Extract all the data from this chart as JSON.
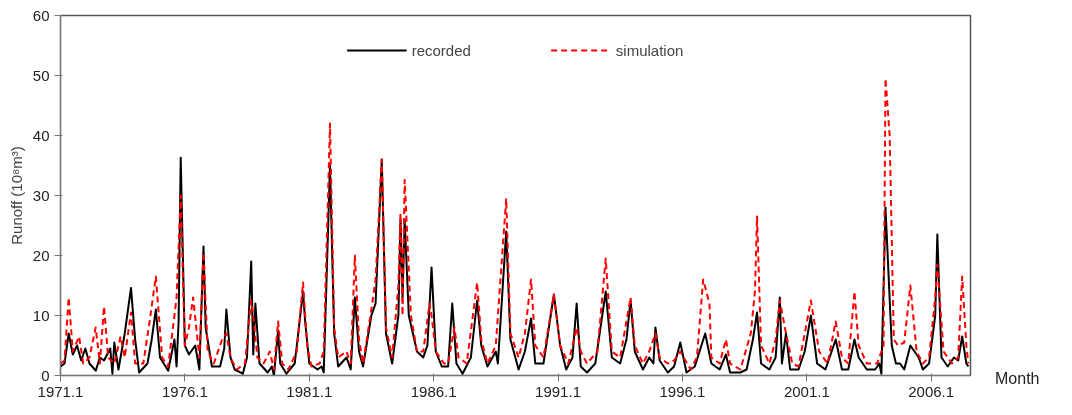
{
  "chart_data": {
    "type": "line",
    "xlabel": "Month",
    "ylabel": "Runoff (10⁸m³)",
    "xlim": [
      "1971-01",
      "2007-08"
    ],
    "ylim": [
      0,
      60
    ],
    "xticks": [
      {
        "value": "1971-01",
        "label": "1971.1"
      },
      {
        "value": "1976-01",
        "label": "1976.1"
      },
      {
        "value": "1981-01",
        "label": "1981.1"
      },
      {
        "value": "1986-01",
        "label": "1986.1"
      },
      {
        "value": "1991-01",
        "label": "1991.1"
      },
      {
        "value": "1996-01",
        "label": "1996.1"
      },
      {
        "value": "2001-01",
        "label": "2001.1"
      },
      {
        "value": "2006-01",
        "label": "2006.1"
      }
    ],
    "yticks": [
      0,
      10,
      20,
      30,
      40,
      50,
      60
    ],
    "grid": false,
    "legend": "top",
    "marker": "none",
    "series": [
      {
        "name": "recorded",
        "color": "#000000",
        "line_style": "solid",
        "x": [
          "1971-01",
          "1971-03",
          "1971-05",
          "1971-07",
          "1971-09",
          "1971-11",
          "1972-01",
          "1972-03",
          "1972-06",
          "1972-08",
          "1972-10",
          "1973-01",
          "1973-02",
          "1973-03",
          "1973-05",
          "1973-08",
          "1973-11",
          "1974-01",
          "1974-03",
          "1974-07",
          "1974-09",
          "1974-11",
          "1975-01",
          "1975-05",
          "1975-08",
          "1975-09",
          "1975-10",
          "1975-11",
          "1976-01",
          "1976-03",
          "1976-06",
          "1976-08",
          "1976-10",
          "1976-11",
          "1977-02",
          "1977-06",
          "1977-08",
          "1977-09",
          "1977-11",
          "1978-01",
          "1978-05",
          "1978-07",
          "1978-09",
          "1978-10",
          "1978-11",
          "1979-01",
          "1979-05",
          "1979-07",
          "1979-08",
          "1979-10",
          "1979-11",
          "1980-02",
          "1980-06",
          "1980-10",
          "1980-11",
          "1981-01",
          "1981-05",
          "1981-07",
          "1981-08",
          "1981-11",
          "1982-01",
          "1982-03",
          "1982-07",
          "1982-09",
          "1982-11",
          "1983-01",
          "1983-03",
          "1983-07",
          "1983-09",
          "1983-12",
          "1984-02",
          "1984-05",
          "1984-08",
          "1984-09",
          "1984-10",
          "1984-11",
          "1985-01",
          "1985-05",
          "1985-08",
          "1985-10",
          "1985-12",
          "1986-02",
          "1986-05",
          "1986-08",
          "1986-10",
          "1986-12",
          "1987-03",
          "1987-07",
          "1987-10",
          "1987-12",
          "1988-03",
          "1988-07",
          "1988-08",
          "1988-12",
          "1989-02",
          "1989-06",
          "1989-09",
          "1989-12",
          "1990-02",
          "1990-06",
          "1990-11",
          "1991-02",
          "1991-05",
          "1991-08",
          "1991-10",
          "1991-12",
          "1992-03",
          "1992-07",
          "1992-12",
          "1993-03",
          "1993-07",
          "1993-10",
          "1993-12",
          "1994-02",
          "1994-06",
          "1994-09",
          "1994-11",
          "1994-12",
          "1995-02",
          "1995-06",
          "1995-09",
          "1995-12",
          "1996-03",
          "1996-07",
          "1996-12",
          "1997-03",
          "1997-07",
          "1997-10",
          "1997-12",
          "1998-05",
          "1998-08",
          "1998-11",
          "1999-01",
          "1999-03",
          "1999-07",
          "1999-10",
          "1999-12",
          "2000-01",
          "2000-03",
          "2000-05",
          "2000-09",
          "2000-12",
          "2001-03",
          "2001-06",
          "2001-10",
          "2002-03",
          "2002-06",
          "2002-09",
          "2002-12",
          "2003-02",
          "2003-06",
          "2003-10",
          "2003-12",
          "2004-01",
          "2004-03",
          "2004-06",
          "2004-08",
          "2004-10",
          "2004-12",
          "2005-03",
          "2005-07",
          "2005-09",
          "2005-12",
          "2006-03",
          "2006-04",
          "2006-06",
          "2006-09",
          "2006-12",
          "2007-02",
          "2007-04",
          "2007-06",
          "2007-07"
        ],
        "values": [
          1.5,
          2,
          7,
          3.5,
          5,
          2.5,
          4.5,
          2,
          0.8,
          3,
          2.5,
          4.5,
          0.3,
          5.5,
          1,
          7,
          14.6,
          6,
          0.5,
          2,
          6,
          11,
          3,
          0.8,
          6,
          1.5,
          9,
          36.3,
          5,
          3.5,
          5,
          1,
          21.5,
          8,
          1.5,
          1.5,
          4.5,
          11,
          3,
          1,
          0.3,
          3,
          19,
          3.5,
          12,
          2,
          0.5,
          1.5,
          0,
          7.5,
          2,
          0.3,
          2,
          14,
          9,
          2,
          1,
          1.5,
          0.5,
          35,
          7,
          1.5,
          3,
          1,
          13,
          4,
          1.5,
          10,
          12,
          36,
          7,
          2,
          10,
          26,
          13,
          26,
          10,
          4,
          3,
          5,
          18,
          4,
          1.5,
          1.5,
          12,
          2,
          0.3,
          3,
          12.5,
          5,
          1.5,
          4,
          2,
          24,
          6,
          1,
          4,
          9.5,
          2,
          2,
          13.5,
          5,
          1,
          3,
          12,
          1.5,
          0.5,
          2,
          14,
          3,
          2,
          6,
          12.5,
          4,
          1,
          3,
          2,
          8,
          2.5,
          0.5,
          1.5,
          5.5,
          0.5,
          1.5,
          7,
          2,
          1,
          3.5,
          0.5,
          0.5,
          1,
          6,
          10.5,
          2,
          1,
          3,
          13,
          2,
          7,
          1,
          1,
          4,
          10,
          2,
          1,
          6,
          1,
          1,
          6,
          3,
          1,
          1,
          2,
          0.3,
          28,
          5,
          2,
          2,
          1,
          5,
          3,
          1,
          2,
          10,
          23.5,
          3,
          1.5,
          3,
          2.5,
          6.5,
          2,
          1.5
        ]
      },
      {
        "name": "simulation",
        "color": "#ff0000",
        "line_style": "dashed",
        "x": [
          "1971-01",
          "1971-03",
          "1971-05",
          "1971-07",
          "1971-10",
          "1971-12",
          "1972-03",
          "1972-06",
          "1972-08",
          "1972-10",
          "1972-12",
          "1973-03",
          "1973-06",
          "1973-08",
          "1973-11",
          "1974-01",
          "1974-05",
          "1974-08",
          "1974-11",
          "1975-02",
          "1975-05",
          "1975-08",
          "1975-09",
          "1975-11",
          "1976-01",
          "1976-03",
          "1976-05",
          "1976-08",
          "1976-10",
          "1976-12",
          "1977-03",
          "1977-07",
          "1977-09",
          "1977-11",
          "1978-02",
          "1978-06",
          "1978-09",
          "1978-10",
          "1978-12",
          "1979-03",
          "1979-06",
          "1979-08",
          "1979-10",
          "1979-12",
          "1980-03",
          "1980-07",
          "1980-10",
          "1980-12",
          "1981-02",
          "1981-06",
          "1981-08",
          "1981-11",
          "1982-01",
          "1982-03",
          "1982-07",
          "1982-09",
          "1982-11",
          "1983-01",
          "1983-03",
          "1983-07",
          "1983-09",
          "1983-12",
          "1984-02",
          "1984-05",
          "1984-08",
          "1984-09",
          "1984-10",
          "1984-11",
          "1985-02",
          "1985-05",
          "1985-08",
          "1985-11",
          "1985-12",
          "1986-02",
          "1986-06",
          "1986-08",
          "1986-11",
          "1987-01",
          "1987-05",
          "1987-10",
          "1987-12",
          "1988-03",
          "1988-07",
          "1988-12",
          "1989-02",
          "1989-06",
          "1989-09",
          "1989-12",
          "1990-02",
          "1990-06",
          "1990-11",
          "1991-02",
          "1991-06",
          "1991-10",
          "1991-12",
          "1992-03",
          "1992-08",
          "1992-12",
          "1993-03",
          "1993-07",
          "1993-12",
          "1994-02",
          "1994-06",
          "1994-09",
          "1994-12",
          "1995-02",
          "1995-06",
          "1995-09",
          "1995-12",
          "1996-05",
          "1996-08",
          "1996-11",
          "1997-02",
          "1997-03",
          "1997-07",
          "1997-10",
          "1997-12",
          "1998-05",
          "1998-10",
          "1998-12",
          "1999-01",
          "1999-03",
          "1999-07",
          "1999-10",
          "1999-12",
          "2000-03",
          "2000-06",
          "2000-09",
          "2000-12",
          "2001-03",
          "2001-07",
          "2001-11",
          "2002-03",
          "2002-06",
          "2002-09",
          "2002-12",
          "2003-02",
          "2003-06",
          "2003-11",
          "2004-02",
          "2004-03",
          "2004-05",
          "2004-07",
          "2004-09",
          "2004-12",
          "2005-03",
          "2005-06",
          "2005-09",
          "2005-12",
          "2006-03",
          "2006-04",
          "2006-07",
          "2006-11",
          "2007-02",
          "2007-04",
          "2007-06",
          "2007-07"
        ],
        "values": [
          2,
          2.5,
          13,
          4,
          6.5,
          2,
          3,
          8,
          2,
          11.5,
          3,
          2,
          6.5,
          3,
          10.5,
          2,
          2,
          9,
          16.5,
          3,
          1.5,
          10,
          13,
          30,
          5,
          8,
          13,
          3,
          20.5,
          4,
          2,
          6,
          7,
          3,
          1,
          2,
          12.5,
          10,
          3,
          2,
          4,
          1,
          9,
          2,
          1,
          4,
          15.5,
          5,
          1.5,
          2,
          4,
          42,
          8,
          3,
          4,
          2,
          20,
          6,
          2,
          11,
          16,
          36,
          8,
          3,
          15,
          27,
          10,
          32.6,
          10,
          4,
          4,
          12,
          10,
          4,
          2,
          2,
          8,
          3,
          2,
          15.5,
          6,
          2,
          5,
          29.5,
          7,
          3,
          7,
          16,
          5,
          3,
          13.5,
          5,
          2,
          8,
          4,
          2,
          4,
          19.5,
          4,
          3,
          13,
          5,
          2,
          4,
          7,
          3,
          2,
          2.5,
          4,
          1,
          3,
          16,
          12,
          3,
          2,
          6,
          2,
          1,
          7,
          14,
          26.5,
          5,
          2,
          6,
          12.5,
          7,
          2,
          1.5,
          7,
          12.5,
          4,
          2,
          9,
          3,
          2,
          14,
          5,
          2,
          2,
          5,
          49.5,
          40,
          6,
          5,
          5.5,
          15,
          4,
          2,
          3,
          13,
          18.5,
          4,
          2,
          3,
          16.5,
          5,
          2
        ]
      }
    ]
  }
}
